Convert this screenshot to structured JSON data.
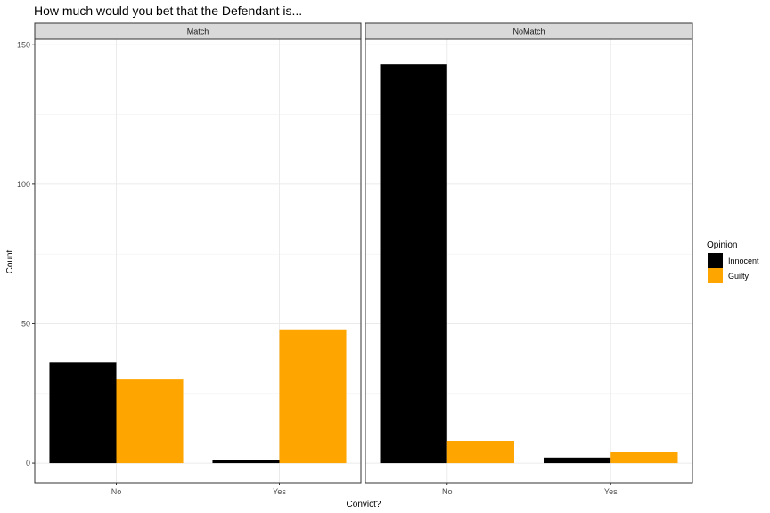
{
  "chart_data": {
    "type": "bar",
    "title": "How much would you bet that the Defendant is...",
    "xlabel": "Convict?",
    "ylabel": "Count",
    "categories": [
      "No",
      "Yes"
    ],
    "facets": [
      {
        "name": "Match",
        "series": [
          {
            "name": "Innocent",
            "values": [
              36,
              1
            ]
          },
          {
            "name": "Guilty",
            "values": [
              30,
              48
            ]
          }
        ]
      },
      {
        "name": "NoMatch",
        "series": [
          {
            "name": "Innocent",
            "values": [
              143,
              2
            ]
          },
          {
            "name": "Guilty",
            "values": [
              8,
              4
            ]
          }
        ]
      }
    ],
    "ylim": [
      -7,
      152
    ],
    "yticks": [
      0,
      50,
      100,
      150
    ],
    "grid": true,
    "legend": {
      "title": "Opinion",
      "placement": "right",
      "items": [
        {
          "label": "Innocent",
          "color": "#000000"
        },
        {
          "label": "Guilty",
          "color": "#FFA500"
        }
      ]
    }
  }
}
